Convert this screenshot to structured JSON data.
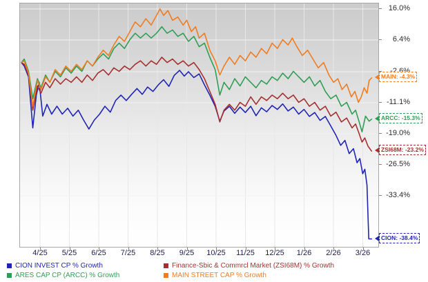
{
  "chart_data": {
    "type": "line",
    "title": "",
    "x_ticks": [
      "4/25",
      "5/25",
      "6/25",
      "7/25",
      "8/25",
      "9/25",
      "10/25",
      "11/25",
      "12/25",
      "1/26",
      "2/26",
      "3/26"
    ],
    "y_axis": {
      "ticks": [
        16.0,
        6.4,
        -2.6,
        -11.1,
        -19.0,
        -26.5,
        -33.4
      ],
      "labels": [
        "16.0%",
        "6.4%",
        "-2.6%",
        "-11.1%",
        "-19.0%",
        "-26.5%",
        "-33.4%"
      ],
      "scale": "log-price-growth",
      "position": "right"
    },
    "ylabel": "% Growth",
    "grid": true,
    "legend_position": "bottom",
    "series": [
      {
        "key": "cion",
        "name": "CION INVEST CP % Growth",
        "color": "#1f24b4",
        "end_value": -38.4,
        "end_label": "CION: -38.4%",
        "points": [
          [
            0,
            0
          ],
          [
            0.008,
            -1
          ],
          [
            0.02,
            -4
          ],
          [
            0.032,
            -17.5
          ],
          [
            0.042,
            -9
          ],
          [
            0.05,
            -5.5
          ],
          [
            0.06,
            -14.5
          ],
          [
            0.072,
            -11.5
          ],
          [
            0.085,
            -14
          ],
          [
            0.1,
            -12
          ],
          [
            0.115,
            -14
          ],
          [
            0.13,
            -12.5
          ],
          [
            0.145,
            -14.5
          ],
          [
            0.16,
            -13
          ],
          [
            0.175,
            -15.5
          ],
          [
            0.19,
            -17.8
          ],
          [
            0.205,
            -15.5
          ],
          [
            0.22,
            -14
          ],
          [
            0.235,
            -12
          ],
          [
            0.25,
            -13.5
          ],
          [
            0.265,
            -10.5
          ],
          [
            0.28,
            -9
          ],
          [
            0.295,
            -10.5
          ],
          [
            0.31,
            -8.8
          ],
          [
            0.325,
            -7.2
          ],
          [
            0.34,
            -8.8
          ],
          [
            0.355,
            -6.8
          ],
          [
            0.37,
            -8
          ],
          [
            0.385,
            -6.2
          ],
          [
            0.4,
            -4.8
          ],
          [
            0.415,
            -6.6
          ],
          [
            0.43,
            -3.6
          ],
          [
            0.445,
            -2.2
          ],
          [
            0.458,
            -3.8
          ],
          [
            0.47,
            -2.6
          ],
          [
            0.485,
            -4.2
          ],
          [
            0.5,
            -3.2
          ],
          [
            0.515,
            -6.2
          ],
          [
            0.53,
            -9
          ],
          [
            0.545,
            -12
          ],
          [
            0.558,
            -15.8
          ],
          [
            0.57,
            -13.2
          ],
          [
            0.585,
            -12
          ],
          [
            0.6,
            -13.8
          ],
          [
            0.615,
            -12.2
          ],
          [
            0.63,
            -13.6
          ],
          [
            0.645,
            -12
          ],
          [
            0.66,
            -14.4
          ],
          [
            0.675,
            -12.4
          ],
          [
            0.69,
            -13.4
          ],
          [
            0.705,
            -11.8
          ],
          [
            0.72,
            -12.8
          ],
          [
            0.735,
            -11.4
          ],
          [
            0.75,
            -13.2
          ],
          [
            0.765,
            -12.2
          ],
          [
            0.78,
            -14
          ],
          [
            0.795,
            -12.8
          ],
          [
            0.81,
            -14.6
          ],
          [
            0.825,
            -13.6
          ],
          [
            0.84,
            -15.6
          ],
          [
            0.855,
            -14.6
          ],
          [
            0.87,
            -17
          ],
          [
            0.885,
            -19.4
          ],
          [
            0.898,
            -21.8
          ],
          [
            0.91,
            -20.6
          ],
          [
            0.922,
            -23.8
          ],
          [
            0.934,
            -22.6
          ],
          [
            0.944,
            -26
          ],
          [
            0.952,
            -25
          ],
          [
            0.96,
            -28.5
          ],
          [
            0.966,
            -27.5
          ],
          [
            0.972,
            -31
          ],
          [
            0.977,
            -38.4
          ],
          [
            0.985,
            -38.4
          ]
        ]
      },
      {
        "key": "arcc",
        "name": "ARES CAP CP (ARCC) % Growth",
        "color": "#2f9e54",
        "end_value": -15.3,
        "end_label": "ARCC: -15.3%",
        "points": [
          [
            0,
            0
          ],
          [
            0.008,
            1
          ],
          [
            0.02,
            -2.5
          ],
          [
            0.032,
            -10
          ],
          [
            0.045,
            -4.5
          ],
          [
            0.055,
            -7
          ],
          [
            0.068,
            -3.5
          ],
          [
            0.08,
            -5.5
          ],
          [
            0.095,
            -2.5
          ],
          [
            0.11,
            -4
          ],
          [
            0.125,
            -1.5
          ],
          [
            0.14,
            -3
          ],
          [
            0.155,
            -1
          ],
          [
            0.17,
            -2.5
          ],
          [
            0.185,
            0.5
          ],
          [
            0.2,
            -1
          ],
          [
            0.215,
            1
          ],
          [
            0.23,
            2.5
          ],
          [
            0.245,
            1
          ],
          [
            0.26,
            4
          ],
          [
            0.275,
            5.5
          ],
          [
            0.29,
            4
          ],
          [
            0.305,
            6.5
          ],
          [
            0.32,
            8.5
          ],
          [
            0.335,
            7
          ],
          [
            0.35,
            8.5
          ],
          [
            0.365,
            7
          ],
          [
            0.38,
            8.5
          ],
          [
            0.395,
            10.5
          ],
          [
            0.41,
            8.5
          ],
          [
            0.425,
            9.5
          ],
          [
            0.44,
            7.5
          ],
          [
            0.455,
            8.5
          ],
          [
            0.47,
            6
          ],
          [
            0.485,
            7.5
          ],
          [
            0.5,
            4.5
          ],
          [
            0.515,
            5.5
          ],
          [
            0.53,
            1.5
          ],
          [
            0.545,
            -2
          ],
          [
            0.558,
            -9
          ],
          [
            0.57,
            -5.5
          ],
          [
            0.585,
            -7.5
          ],
          [
            0.6,
            -4.5
          ],
          [
            0.615,
            -6.5
          ],
          [
            0.63,
            -4
          ],
          [
            0.645,
            -5.5
          ],
          [
            0.66,
            -7
          ],
          [
            0.675,
            -5
          ],
          [
            0.69,
            -6
          ],
          [
            0.705,
            -4
          ],
          [
            0.72,
            -5
          ],
          [
            0.735,
            -3
          ],
          [
            0.75,
            -4.5
          ],
          [
            0.765,
            -2.5
          ],
          [
            0.78,
            -4
          ],
          [
            0.795,
            -5.5
          ],
          [
            0.81,
            -4
          ],
          [
            0.825,
            -6.5
          ],
          [
            0.84,
            -5
          ],
          [
            0.855,
            -8
          ],
          [
            0.87,
            -10
          ],
          [
            0.885,
            -9
          ],
          [
            0.9,
            -12
          ],
          [
            0.915,
            -11
          ],
          [
            0.93,
            -14
          ],
          [
            0.94,
            -13
          ],
          [
            0.95,
            -16
          ],
          [
            0.958,
            -18.5
          ],
          [
            0.968,
            -14.5
          ],
          [
            0.978,
            -15.8
          ],
          [
            0.985,
            -15.3
          ]
        ]
      },
      {
        "key": "zsi68m",
        "name": "Finance-Sbic & Commrcl Market (ZSI68M) % Growth",
        "color": "#a52f2f",
        "end_value": -23.2,
        "end_label": "ZSI68M: -23.2%",
        "points": [
          [
            0,
            0
          ],
          [
            0.008,
            -0.5
          ],
          [
            0.02,
            -3.5
          ],
          [
            0.032,
            -13
          ],
          [
            0.045,
            -6.5
          ],
          [
            0.055,
            -8.5
          ],
          [
            0.068,
            -5.5
          ],
          [
            0.08,
            -7
          ],
          [
            0.095,
            -4.5
          ],
          [
            0.11,
            -6
          ],
          [
            0.125,
            -4.5
          ],
          [
            0.14,
            -5.5
          ],
          [
            0.155,
            -4
          ],
          [
            0.17,
            -5.5
          ],
          [
            0.185,
            -3.5
          ],
          [
            0.2,
            -5
          ],
          [
            0.215,
            -3
          ],
          [
            0.23,
            -2
          ],
          [
            0.245,
            -3.5
          ],
          [
            0.26,
            -1.5
          ],
          [
            0.275,
            -2.5
          ],
          [
            0.29,
            -1
          ],
          [
            0.305,
            -2
          ],
          [
            0.32,
            -0.5
          ],
          [
            0.335,
            0.5
          ],
          [
            0.35,
            -1
          ],
          [
            0.365,
            0.5
          ],
          [
            0.38,
            -0.5
          ],
          [
            0.395,
            1.5
          ],
          [
            0.41,
            0
          ],
          [
            0.425,
            1
          ],
          [
            0.44,
            -0.5
          ],
          [
            0.455,
            0.5
          ],
          [
            0.47,
            -1
          ],
          [
            0.485,
            0
          ],
          [
            0.5,
            -2
          ],
          [
            0.515,
            -4.5
          ],
          [
            0.53,
            -8
          ],
          [
            0.545,
            -11.5
          ],
          [
            0.558,
            -16
          ],
          [
            0.57,
            -13
          ],
          [
            0.585,
            -11.5
          ],
          [
            0.6,
            -13
          ],
          [
            0.615,
            -11
          ],
          [
            0.63,
            -12
          ],
          [
            0.645,
            -9.5
          ],
          [
            0.66,
            -11.5
          ],
          [
            0.675,
            -9.5
          ],
          [
            0.69,
            -10.5
          ],
          [
            0.705,
            -9
          ],
          [
            0.72,
            -10
          ],
          [
            0.735,
            -8.5
          ],
          [
            0.75,
            -10
          ],
          [
            0.765,
            -9
          ],
          [
            0.78,
            -11
          ],
          [
            0.795,
            -10
          ],
          [
            0.81,
            -12
          ],
          [
            0.825,
            -11
          ],
          [
            0.84,
            -13
          ],
          [
            0.855,
            -12
          ],
          [
            0.87,
            -14.5
          ],
          [
            0.885,
            -13.5
          ],
          [
            0.9,
            -16
          ],
          [
            0.915,
            -15
          ],
          [
            0.93,
            -17.5
          ],
          [
            0.94,
            -16.5
          ],
          [
            0.95,
            -19
          ],
          [
            0.958,
            -21
          ],
          [
            0.966,
            -20
          ],
          [
            0.975,
            -22
          ],
          [
            0.985,
            -23.2
          ]
        ]
      },
      {
        "key": "main",
        "name": "MAIN STREET CAP % Growth",
        "color": "#ef7c21",
        "end_value": -4.3,
        "end_label": "MAIN: -4.3%",
        "points": [
          [
            0,
            0
          ],
          [
            0.008,
            0.5
          ],
          [
            0.02,
            -3
          ],
          [
            0.032,
            -12
          ],
          [
            0.045,
            -5
          ],
          [
            0.055,
            -7.5
          ],
          [
            0.068,
            -4
          ],
          [
            0.08,
            -5.5
          ],
          [
            0.095,
            -2
          ],
          [
            0.11,
            -3.5
          ],
          [
            0.125,
            -1
          ],
          [
            0.14,
            -2.5
          ],
          [
            0.155,
            -0.5
          ],
          [
            0.17,
            -2
          ],
          [
            0.185,
            0.5
          ],
          [
            0.2,
            -1
          ],
          [
            0.215,
            1.5
          ],
          [
            0.23,
            3.5
          ],
          [
            0.245,
            2
          ],
          [
            0.26,
            5
          ],
          [
            0.275,
            7.5
          ],
          [
            0.29,
            6
          ],
          [
            0.305,
            9
          ],
          [
            0.32,
            12
          ],
          [
            0.335,
            10.5
          ],
          [
            0.35,
            13
          ],
          [
            0.365,
            11
          ],
          [
            0.38,
            14
          ],
          [
            0.39,
            16
          ],
          [
            0.4,
            14
          ],
          [
            0.412,
            15.5
          ],
          [
            0.425,
            12.5
          ],
          [
            0.44,
            13.5
          ],
          [
            0.455,
            11
          ],
          [
            0.465,
            12.5
          ],
          [
            0.478,
            9
          ],
          [
            0.49,
            10.5
          ],
          [
            0.5,
            7
          ],
          [
            0.515,
            8.5
          ],
          [
            0.53,
            3.5
          ],
          [
            0.545,
            0.5
          ],
          [
            0.558,
            -3.5
          ],
          [
            0.57,
            -1
          ],
          [
            0.585,
            1.5
          ],
          [
            0.6,
            -0.5
          ],
          [
            0.615,
            2
          ],
          [
            0.63,
            0.5
          ],
          [
            0.645,
            3
          ],
          [
            0.66,
            1.5
          ],
          [
            0.675,
            4
          ],
          [
            0.69,
            2.5
          ],
          [
            0.705,
            5.5
          ],
          [
            0.72,
            4
          ],
          [
            0.735,
            6.5
          ],
          [
            0.75,
            5
          ],
          [
            0.762,
            7
          ],
          [
            0.775,
            4.5
          ],
          [
            0.79,
            2
          ],
          [
            0.805,
            3.5
          ],
          [
            0.82,
            1
          ],
          [
            0.835,
            -1.5
          ],
          [
            0.85,
            0
          ],
          [
            0.865,
            -3.5
          ],
          [
            0.878,
            -5.5
          ],
          [
            0.89,
            -4.5
          ],
          [
            0.902,
            -7.5
          ],
          [
            0.915,
            -6
          ],
          [
            0.928,
            -9.5
          ],
          [
            0.938,
            -8
          ],
          [
            0.948,
            -11
          ],
          [
            0.956,
            -9.5
          ],
          [
            0.964,
            -7
          ],
          [
            0.972,
            -8.5
          ],
          [
            0.978,
            -5
          ],
          [
            0.985,
            -4.3
          ]
        ]
      }
    ]
  }
}
